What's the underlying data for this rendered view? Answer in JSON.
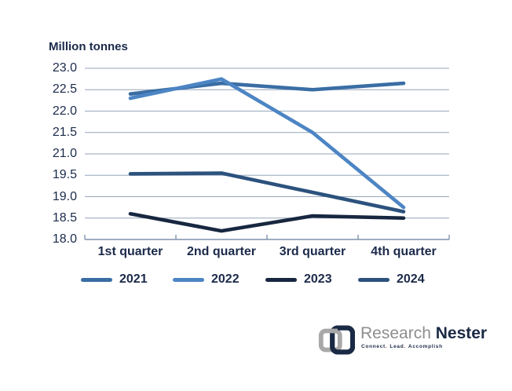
{
  "chart_data": {
    "type": "line",
    "title": "Million tonnes",
    "categories": [
      "1st quarter",
      "2nd quarter",
      "3rd quarter",
      "4th quarter"
    ],
    "y_axis_labels": [
      "23.0",
      "22.5",
      "22.0",
      "21.5",
      "21.0",
      "19.5",
      "19.0",
      "18.5",
      "18.0"
    ],
    "grid": true,
    "legend_position": "bottom",
    "series": [
      {
        "name": "2021",
        "color": "#3a6da4",
        "values": [
          22.4,
          22.65,
          22.5,
          22.65
        ]
      },
      {
        "name": "2022",
        "color": "#4d85c4",
        "values": [
          22.3,
          22.75,
          21.5,
          18.75
        ]
      },
      {
        "name": "2023",
        "color": "#182740",
        "values": [
          18.6,
          18.2,
          18.55,
          18.5
        ]
      },
      {
        "name": "2024",
        "color": "#2c527d",
        "values": [
          19.6,
          19.65,
          19.1,
          18.65
        ]
      }
    ],
    "colors": {
      "gridline": "#94a6bb",
      "axis": "#7f93ad",
      "text": "#1b2a4a"
    }
  },
  "logo": {
    "brand_first": "Research",
    "brand_second": "Nester",
    "tagline": "Connect. Lead. Accomplish",
    "tagline_words": [
      "Connect",
      "Lead",
      "Accomplish"
    ],
    "dot": ".",
    "colors": {
      "brand_first": "#8e8e8e",
      "brand_second": "#1b2a44",
      "dot": "#b03a2e"
    }
  }
}
